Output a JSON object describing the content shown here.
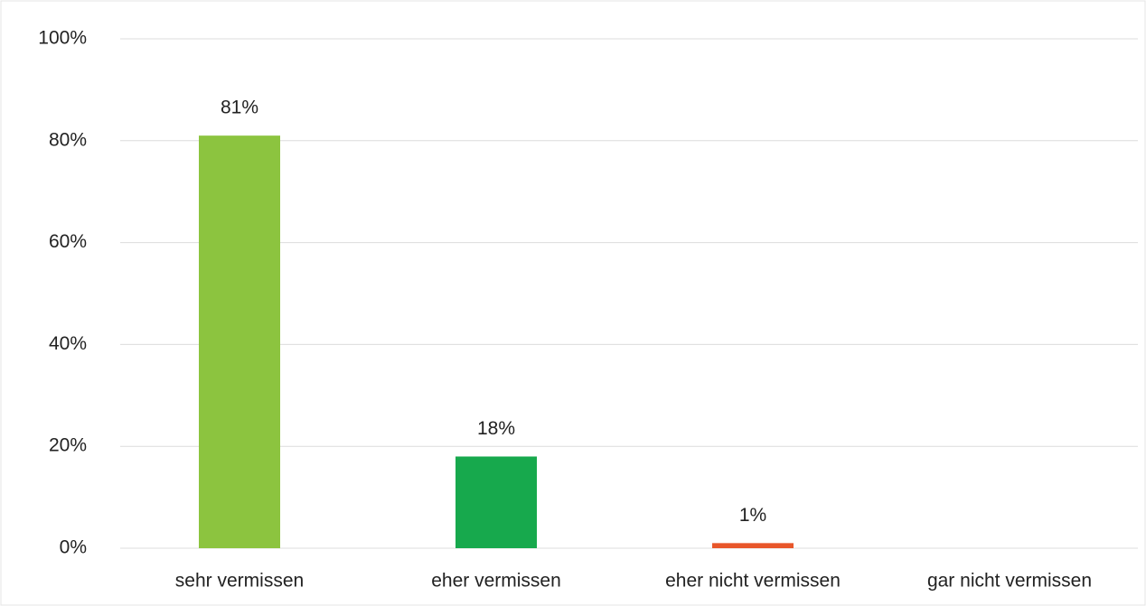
{
  "chart_data": {
    "type": "bar",
    "categories": [
      "sehr vermissen",
      "eher vermissen",
      "eher nicht vermissen",
      "gar nicht vermissen"
    ],
    "values": [
      81,
      18,
      1,
      null
    ],
    "value_labels": [
      "81%",
      "18%",
      "1%",
      null
    ],
    "colors": [
      "#8cc43f",
      "#17a94d",
      "#e8562a",
      null
    ],
    "ylim": [
      0,
      100
    ],
    "yticks": [
      {
        "value": 0,
        "label": "0%"
      },
      {
        "value": 20,
        "label": "20%"
      },
      {
        "value": 40,
        "label": "40%"
      },
      {
        "value": 60,
        "label": "60%"
      },
      {
        "value": 80,
        "label": "80%"
      },
      {
        "value": 100,
        "label": "100%"
      }
    ],
    "grid": true
  }
}
